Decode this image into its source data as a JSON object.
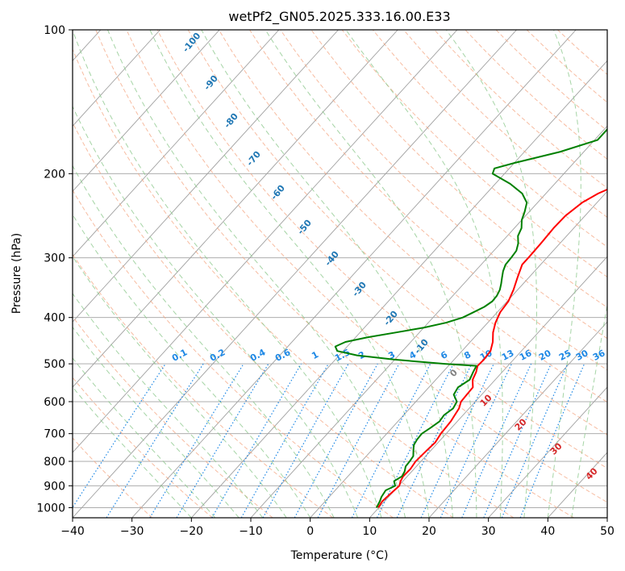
{
  "chart_data": {
    "type": "line",
    "title": "wetPf2_GN05.2025.333.16.00.E33",
    "xlabel": "Temperature (°C)",
    "ylabel": "Pressure (hPa)",
    "xlim": [
      -40,
      50
    ],
    "ylim": [
      1050,
      100
    ],
    "y_scale": "log",
    "grid": true,
    "x_ticks": [
      -40,
      -30,
      -20,
      -10,
      0,
      10,
      20,
      30,
      40,
      50
    ],
    "x_tick_labels": [
      "−40",
      "−30",
      "−20",
      "−10",
      "0",
      "10",
      "20",
      "30",
      "40",
      "50"
    ],
    "y_ticks": [
      100,
      200,
      300,
      400,
      500,
      600,
      700,
      800,
      900,
      1000
    ],
    "y_tick_labels": [
      "100",
      "200",
      "300",
      "400",
      "500",
      "600",
      "700",
      "800",
      "900",
      "1000"
    ],
    "colors": {
      "temperature": "#ff0000",
      "dewpoint": "#008000",
      "isotherm": "#a0a0a0",
      "dry_adiabat": "#f4a582",
      "moist_adiabat": "#8fc98f",
      "mixing_ratio": "#1e88e5",
      "dry_adiabat_label": "#1f77b4",
      "moist_adiabat_label": "#d62728",
      "zero_label": "#808080",
      "boundary": "#c8a060"
    },
    "series": [
      {
        "key": "temperature",
        "pressure": [
          1000,
          970,
          940,
          900,
          880,
          860,
          830,
          800,
          760,
          730,
          700,
          680,
          660,
          640,
          620,
          600,
          580,
          560,
          540,
          520,
          505,
          490,
          470,
          450,
          430,
          410,
          390,
          370,
          350,
          330,
          310,
          300,
          280,
          260,
          245,
          230,
          220,
          210,
          200,
          190,
          180,
          170,
          160,
          150,
          140,
          130,
          120,
          110,
          100
        ],
        "values": [
          9.9,
          9.6,
          9.8,
          10.1,
          9.6,
          9.3,
          9.4,
          9.1,
          9.3,
          9.5,
          9.1,
          9.0,
          8.9,
          8.6,
          8.3,
          7.6,
          7.5,
          7.4,
          6.2,
          5.6,
          4.9,
          5.0,
          4.8,
          3.8,
          2.4,
          1.3,
          0.5,
          0.2,
          -0.7,
          -1.9,
          -3.1,
          -3.1,
          -3.2,
          -3.4,
          -3.3,
          -2.5,
          -1.2,
          1.0,
          5.0,
          8.0,
          10.3,
          12.3,
          14.0,
          15.4,
          17.2,
          18.6,
          20.3,
          21.9,
          23.8
        ]
      },
      {
        "key": "dewpoint",
        "pressure": [
          1000,
          970,
          950,
          920,
          900,
          880,
          860,
          840,
          820,
          800,
          780,
          760,
          740,
          720,
          700,
          680,
          660,
          640,
          620,
          600,
          580,
          560,
          540,
          520,
          505,
          500,
          490,
          480,
          470,
          460,
          450,
          440,
          430,
          420,
          410,
          400,
          390,
          380,
          370,
          360,
          350,
          340,
          330,
          320,
          310,
          300,
          290,
          280,
          270,
          260,
          250,
          240,
          230,
          220,
          210,
          200,
          195,
          190,
          180,
          170,
          160,
          150,
          140,
          130,
          120,
          110,
          100
        ],
        "values": [
          9.6,
          9.2,
          8.8,
          8.5,
          9.4,
          8.5,
          9.1,
          8.8,
          8.2,
          8.1,
          7.9,
          7.1,
          6.3,
          6.0,
          5.9,
          6.5,
          7.0,
          6.8,
          7.3,
          6.9,
          5.3,
          4.9,
          5.7,
          5.1,
          4.7,
          -1.0,
          -10.0,
          -17.0,
          -21.0,
          -22.0,
          -21.0,
          -18.0,
          -14.0,
          -10.0,
          -7.0,
          -5.0,
          -4.0,
          -3.0,
          -2.5,
          -2.6,
          -3.0,
          -3.7,
          -4.5,
          -5.3,
          -5.9,
          -6.0,
          -6.2,
          -7.0,
          -8.2,
          -8.8,
          -10.0,
          -10.8,
          -11.8,
          -14.0,
          -17.5,
          -22.0,
          -22.5,
          -20.0,
          -14.0,
          -9.5,
          -9.5,
          -11.0,
          -11.5,
          -9.5,
          -6.5,
          -2.5,
          1.0
        ]
      }
    ],
    "dry_adiabat_labels": [
      "-100",
      "-90",
      "-80",
      "-70",
      "-60",
      "-50",
      "-40",
      "-30",
      "-20",
      "-10"
    ],
    "dry_adiabat_label_values": [
      -100,
      -90,
      -80,
      -70,
      -60,
      -50,
      -40,
      -30,
      -20,
      -10
    ],
    "moist_adiabat_labels": [
      "0",
      "10",
      "20",
      "30",
      "40"
    ],
    "moist_adiabat_label_values": [
      0,
      10,
      20,
      30,
      40
    ],
    "mixing_ratio_labels": [
      "0.1",
      "0.2",
      "0.4",
      "0.6",
      "1",
      "1.5",
      "2",
      "3",
      "4",
      "6",
      "8",
      "10",
      "13",
      "16",
      "20",
      "25",
      "30",
      "36"
    ],
    "mixing_ratio_values": [
      0.1,
      0.2,
      0.4,
      0.6,
      1,
      1.5,
      2,
      3,
      4,
      6,
      8,
      10,
      13,
      16,
      20,
      25,
      30,
      36
    ]
  }
}
